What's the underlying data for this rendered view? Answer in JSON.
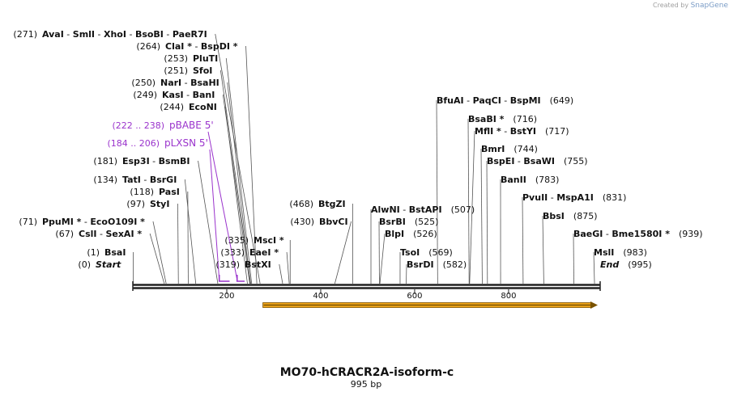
{
  "credit": {
    "prefix": "Created by",
    "brand": "SnapGene"
  },
  "map": {
    "title": "MO70-hCRACR2A-isoform-c",
    "length_label": "995 bp",
    "sequence_length": 995,
    "colors": {
      "backbone": "#222222",
      "primer": "#9a33cc",
      "feature_fill": "#f2a71b",
      "feature_stroke": "#7a5200",
      "line": "#555555"
    },
    "ticks": [
      {
        "pos": 200,
        "label": "200"
      },
      {
        "pos": 400,
        "label": "400"
      },
      {
        "pos": 600,
        "label": "600"
      },
      {
        "pos": 800,
        "label": "800"
      }
    ],
    "feature": {
      "start": 270,
      "end": 995,
      "direction": "forward"
    },
    "primers": [
      {
        "coord": "(222 .. 238)",
        "name": "pBABE 5'",
        "start": 222,
        "end": 238
      },
      {
        "coord": "(184 .. 206)",
        "name": "pLXSN 5'",
        "start": 184,
        "end": 206
      }
    ],
    "sites": [
      {
        "num": "(271)",
        "names": [
          "AvaI",
          "SmlI",
          "XhoI",
          "BsoBI",
          "PaeR7I"
        ],
        "stars": [
          false,
          false,
          false,
          false,
          false
        ],
        "pos": 271,
        "side": "left"
      },
      {
        "num": "(264)",
        "names": [
          "ClaI",
          "BspDI"
        ],
        "stars": [
          true,
          true
        ],
        "pos": 264,
        "side": "left"
      },
      {
        "num": "(253)",
        "names": [
          "PluTI"
        ],
        "stars": [
          false
        ],
        "pos": 253,
        "side": "left"
      },
      {
        "num": "(251)",
        "names": [
          "SfoI"
        ],
        "stars": [
          false
        ],
        "pos": 251,
        "side": "left"
      },
      {
        "num": "(250)",
        "names": [
          "NarI",
          "BsaHI"
        ],
        "stars": [
          false,
          false
        ],
        "pos": 250,
        "side": "left"
      },
      {
        "num": "(249)",
        "names": [
          "KasI",
          "BanI"
        ],
        "stars": [
          false,
          false
        ],
        "pos": 249,
        "side": "left"
      },
      {
        "num": "(244)",
        "names": [
          "EcoNI"
        ],
        "stars": [
          false
        ],
        "pos": 244,
        "side": "left"
      },
      {
        "num": "(181)",
        "names": [
          "Esp3I",
          "BsmBI"
        ],
        "stars": [
          false,
          false
        ],
        "pos": 181,
        "side": "left"
      },
      {
        "num": "(134)",
        "names": [
          "TatI",
          "BsrGI"
        ],
        "stars": [
          false,
          false
        ],
        "pos": 134,
        "side": "left"
      },
      {
        "num": "(118)",
        "names": [
          "PasI"
        ],
        "stars": [
          false
        ],
        "pos": 118,
        "side": "left"
      },
      {
        "num": "(97)",
        "names": [
          "StyI"
        ],
        "stars": [
          false
        ],
        "pos": 97,
        "side": "left"
      },
      {
        "num": "(71)",
        "names": [
          "PpuMI",
          "EcoO109I"
        ],
        "stars": [
          true,
          true
        ],
        "pos": 71,
        "side": "left"
      },
      {
        "num": "(67)",
        "names": [
          "CslI",
          "SexAI"
        ],
        "stars": [
          false,
          true
        ],
        "pos": 67,
        "side": "left"
      },
      {
        "num": "(1)",
        "names": [
          "BsaI"
        ],
        "stars": [
          false
        ],
        "pos": 1,
        "side": "left"
      },
      {
        "num": "(0)",
        "names": [
          "Start"
        ],
        "stars": [
          false
        ],
        "pos": 0,
        "side": "left",
        "italic": true
      },
      {
        "num": "(335)",
        "names": [
          "MscI"
        ],
        "stars": [
          true
        ],
        "pos": 335,
        "side": "left"
      },
      {
        "num": "(333)",
        "names": [
          "EaeI"
        ],
        "stars": [
          true
        ],
        "pos": 333,
        "side": "left"
      },
      {
        "num": "(319)",
        "names": [
          "BstXI"
        ],
        "stars": [
          false
        ],
        "pos": 319,
        "side": "left"
      },
      {
        "num": "(468)",
        "names": [
          "BtgZI"
        ],
        "stars": [
          false
        ],
        "pos": 468,
        "side": "left"
      },
      {
        "num": "(430)",
        "names": [
          "BbvCI"
        ],
        "stars": [
          false
        ],
        "pos": 430,
        "side": "left"
      },
      {
        "num": "(507)",
        "names": [
          "AlwNI",
          "BstAPI"
        ],
        "stars": [
          false,
          false
        ],
        "pos": 507,
        "side": "right"
      },
      {
        "num": "(525)",
        "names": [
          "BsrBI"
        ],
        "stars": [
          false
        ],
        "pos": 525,
        "side": "right"
      },
      {
        "num": "(526)",
        "names": [
          "BlpI"
        ],
        "stars": [
          false
        ],
        "pos": 526,
        "side": "right"
      },
      {
        "num": "(569)",
        "names": [
          "TsoI"
        ],
        "stars": [
          false
        ],
        "pos": 569,
        "side": "right"
      },
      {
        "num": "(582)",
        "names": [
          "BsrDI"
        ],
        "stars": [
          false
        ],
        "pos": 582,
        "side": "right"
      },
      {
        "num": "(649)",
        "names": [
          "BfuAI",
          "PaqCI",
          "BspMI"
        ],
        "stars": [
          false,
          false,
          false
        ],
        "pos": 649,
        "side": "right"
      },
      {
        "num": "(716)",
        "names": [
          "BsaBI"
        ],
        "stars": [
          true
        ],
        "pos": 716,
        "side": "right"
      },
      {
        "num": "(717)",
        "names": [
          "MflI",
          "BstYI"
        ],
        "stars": [
          true,
          false
        ],
        "pos": 717,
        "side": "right"
      },
      {
        "num": "(744)",
        "names": [
          "BmrI"
        ],
        "stars": [
          false
        ],
        "pos": 744,
        "side": "right"
      },
      {
        "num": "(755)",
        "names": [
          "BspEI",
          "BsaWI"
        ],
        "stars": [
          false,
          false
        ],
        "pos": 755,
        "side": "right"
      },
      {
        "num": "(783)",
        "names": [
          "BanII"
        ],
        "stars": [
          false
        ],
        "pos": 783,
        "side": "right"
      },
      {
        "num": "(831)",
        "names": [
          "PvuII",
          "MspA1I"
        ],
        "stars": [
          false,
          false
        ],
        "pos": 831,
        "side": "right"
      },
      {
        "num": "(875)",
        "names": [
          "BbsI"
        ],
        "stars": [
          false
        ],
        "pos": 875,
        "side": "right"
      },
      {
        "num": "(939)",
        "names": [
          "BaeGI",
          "Bme1580I"
        ],
        "stars": [
          false,
          true
        ],
        "pos": 939,
        "side": "right"
      },
      {
        "num": "(983)",
        "names": [
          "MslI"
        ],
        "stars": [
          false
        ],
        "pos": 983,
        "side": "right"
      },
      {
        "num": "(995)",
        "names": [
          "End"
        ],
        "stars": [
          false
        ],
        "pos": 995,
        "side": "right",
        "italic": true
      }
    ]
  }
}
